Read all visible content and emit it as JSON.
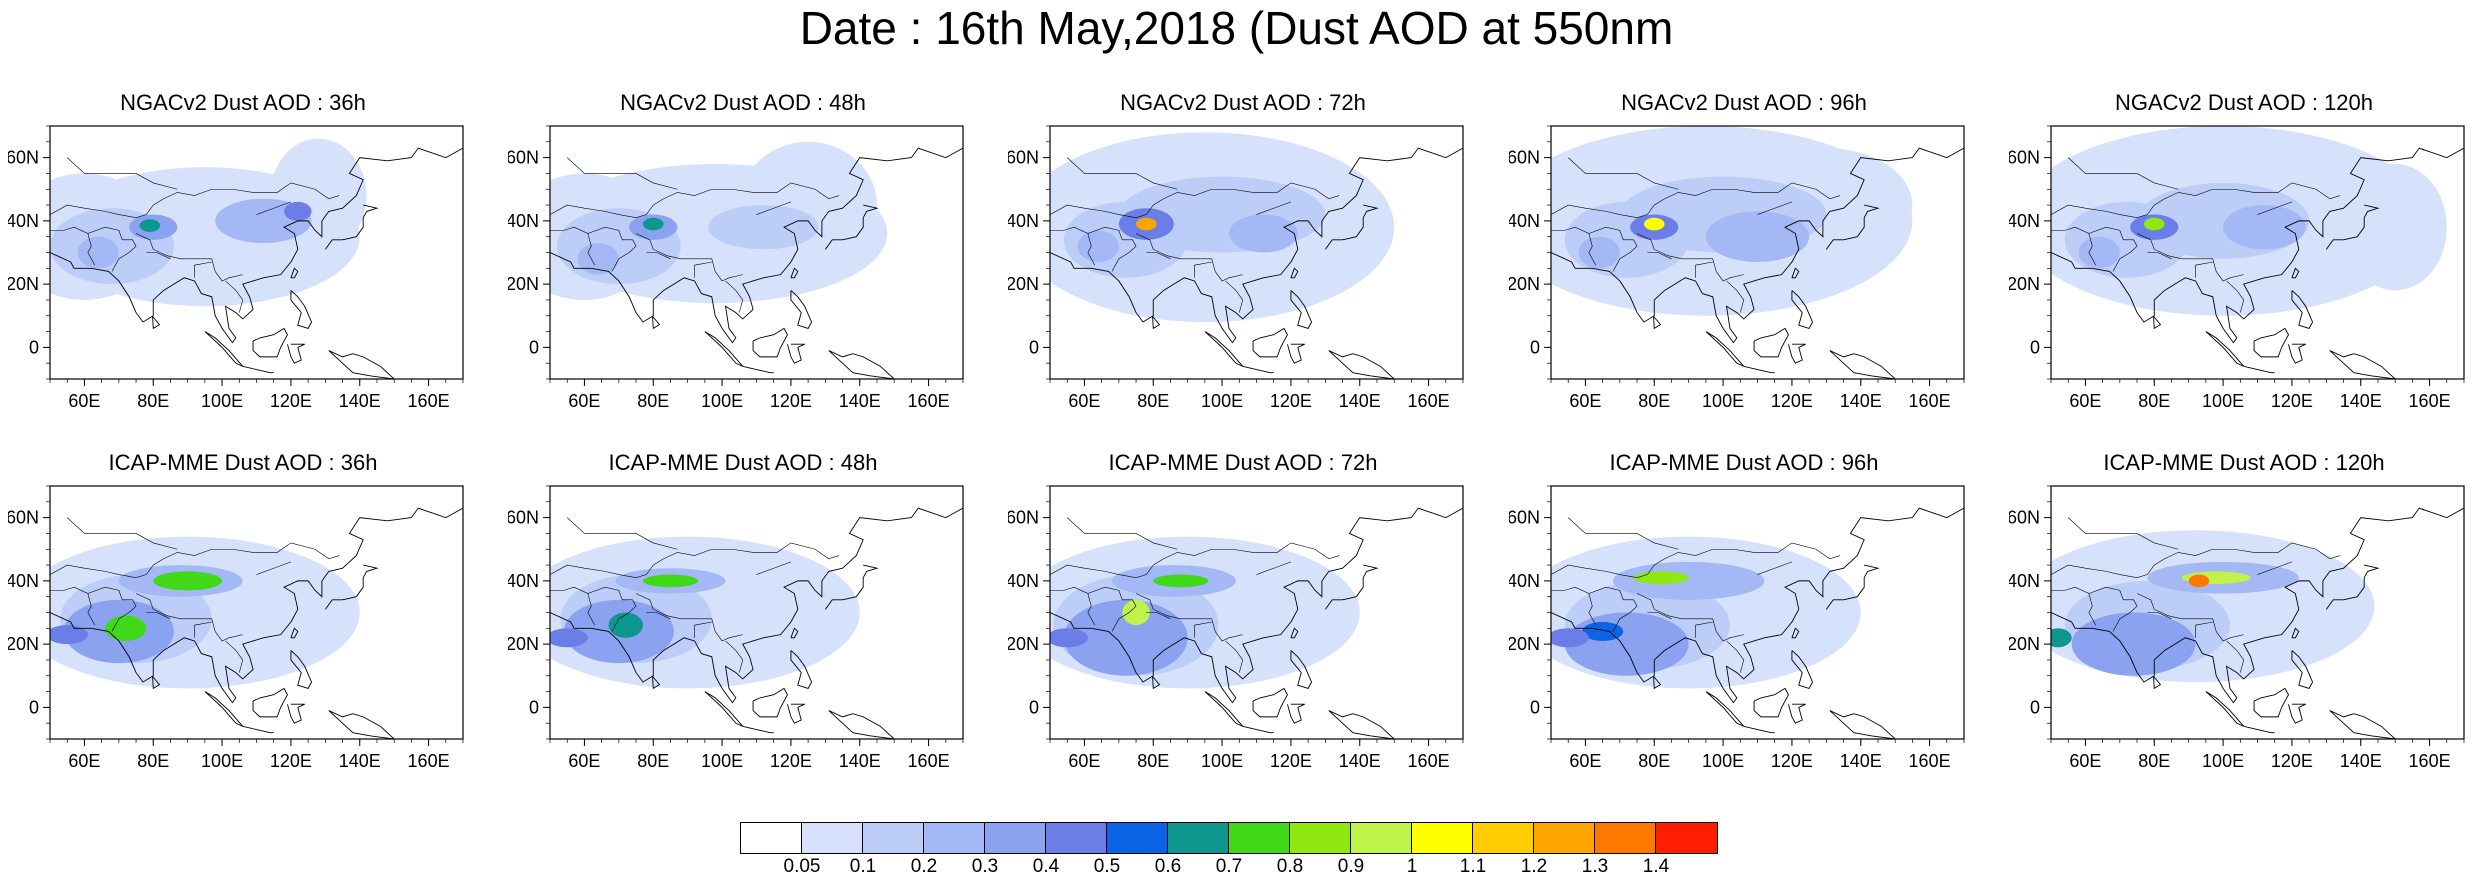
{
  "title": "Date : 16th May,2018 (Dust AOD at 550nm",
  "map_axes": {
    "lon_ticks": [
      "60E",
      "80E",
      "100E",
      "120E",
      "140E",
      "160E"
    ],
    "lat_ticks": [
      "60N",
      "40N",
      "20N",
      "0"
    ],
    "lon_range": [
      50,
      170
    ],
    "lat_range": [
      -10,
      70
    ]
  },
  "panels": [
    {
      "title": "NGACv2 Dust AOD : 36h",
      "model": "NGACv2",
      "lead": "36h"
    },
    {
      "title": "NGACv2 Dust AOD : 48h",
      "model": "NGACv2",
      "lead": "48h"
    },
    {
      "title": "NGACv2 Dust AOD : 72h",
      "model": "NGACv2",
      "lead": "72h"
    },
    {
      "title": "NGACv2 Dust AOD : 96h",
      "model": "NGACv2",
      "lead": "96h"
    },
    {
      "title": "NGACv2 Dust AOD : 120h",
      "model": "NGACv2",
      "lead": "120h"
    },
    {
      "title": "ICAP-MME Dust AOD : 36h",
      "model": "ICAP-MME",
      "lead": "36h"
    },
    {
      "title": "ICAP-MME Dust AOD : 48h",
      "model": "ICAP-MME",
      "lead": "48h"
    },
    {
      "title": "ICAP-MME Dust AOD : 72h",
      "model": "ICAP-MME",
      "lead": "72h"
    },
    {
      "title": "ICAP-MME Dust AOD : 96h",
      "model": "ICAP-MME",
      "lead": "96h"
    },
    {
      "title": "ICAP-MME Dust AOD : 120h",
      "model": "ICAP-MME",
      "lead": "120h"
    }
  ],
  "colorbar": {
    "labels": [
      "0.05",
      "0.1",
      "0.2",
      "0.3",
      "0.4",
      "0.5",
      "0.6",
      "0.7",
      "0.8",
      "0.9",
      "1",
      "1.1",
      "1.2",
      "1.3",
      "1.4"
    ],
    "colors": [
      "#ffffff",
      "#d6e2fb",
      "#bccdf8",
      "#a3b8f5",
      "#8aa2f0",
      "#6b7ee8",
      "#0a64e6",
      "#0e978f",
      "#41d81a",
      "#8fe80f",
      "#bff24b",
      "#ffff00",
      "#ffcd00",
      "#ffa500",
      "#ff7800",
      "#ff1e00"
    ]
  }
}
